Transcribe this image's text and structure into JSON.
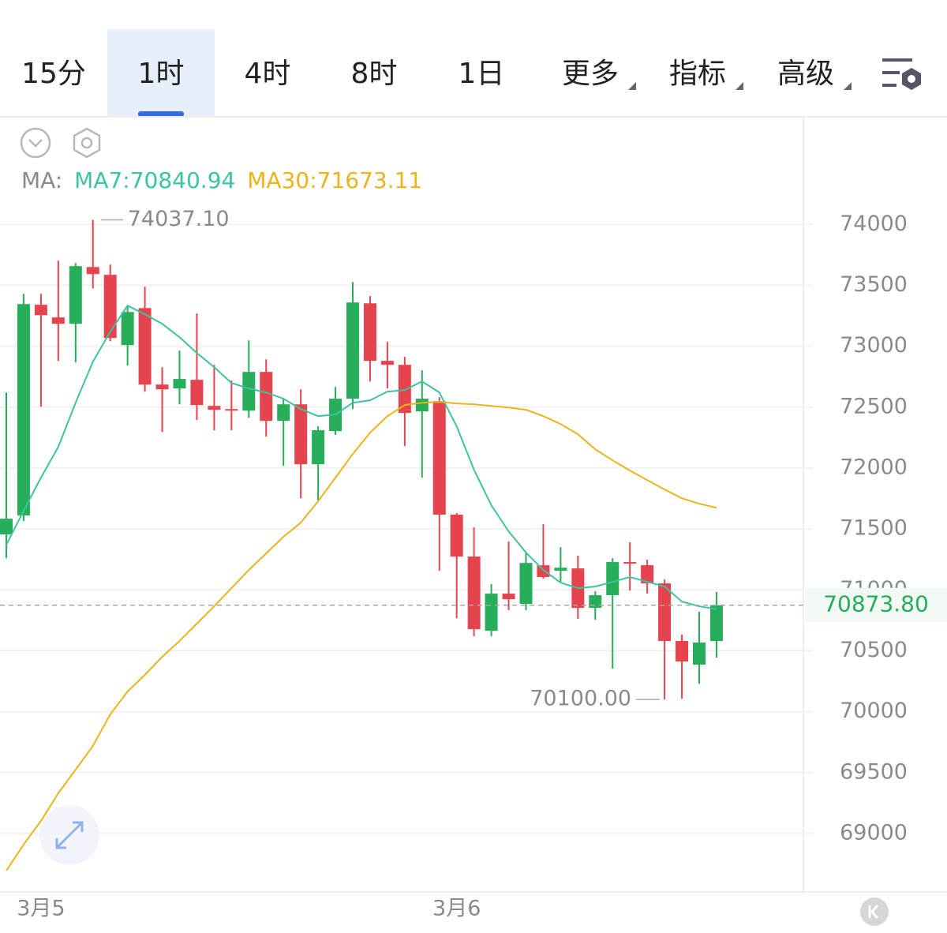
{
  "tabs": [
    "15分",
    "1时",
    "4时",
    "8时",
    "1日",
    "更多",
    "指标",
    "高级"
  ],
  "selected_tab": 1,
  "chart_data": {
    "type": "candlestick",
    "legend_prefix": "MA:",
    "categories": [
      null,
      null,
      "3月5",
      null,
      null,
      null,
      null,
      null,
      null,
      null,
      null,
      null,
      null,
      null,
      null,
      null,
      null,
      null,
      null,
      null,
      null,
      null,
      null,
      null,
      null,
      null,
      "3月6",
      null,
      null,
      null,
      null,
      null,
      null,
      null,
      null,
      null,
      null,
      null,
      null,
      null,
      null,
      null
    ],
    "open": [
      71455,
      71610,
      73340,
      73236,
      73184,
      73650,
      73586,
      73009,
      73313,
      72685,
      72653,
      72724,
      72510,
      72484,
      72471,
      72789,
      72387,
      72523,
      72031,
      72303,
      72569,
      73352,
      72880,
      72847,
      72465,
      72549,
      71617,
      71273,
      70664,
      70969,
      70885,
      71202,
      71157,
      71176,
      70852,
      70956,
      71228,
      71202,
      71053,
      70580,
      70386,
      70580
    ],
    "high": [
      72620,
      73430,
      73430,
      73702,
      73683,
      74037.1,
      73670,
      73326,
      73488,
      72828,
      72964,
      73268,
      72847,
      72718,
      73048,
      72892,
      72569,
      72646,
      72342,
      72666,
      73527,
      73411,
      73035,
      72912,
      72802,
      72582,
      71630,
      71513,
      71047,
      71396,
      71312,
      71539,
      71351,
      71280,
      70988,
      71260,
      71390,
      71247,
      71085,
      70632,
      70820,
      70982
    ],
    "low": [
      71260,
      71565,
      72504,
      72880,
      72867,
      73475,
      73041,
      72841,
      72627,
      72297,
      72523,
      72394,
      72310,
      72310,
      72413,
      72258,
      72018,
      71752,
      71733,
      72271,
      72484,
      72711,
      72653,
      72180,
      71921,
      71157,
      70768,
      70619,
      70619,
      70833,
      70833,
      71092,
      71066,
      70762,
      70755,
      70353,
      70995,
      70969,
      70100,
      70107,
      70230,
      70444
    ],
    "close": [
      71584,
      73346,
      73255,
      73184,
      73657,
      73592,
      73067,
      73281,
      72685,
      72646,
      72731,
      72517,
      72478,
      72471,
      72789,
      72387,
      72523,
      72031,
      72310,
      72569,
      73359,
      72880,
      72847,
      72452,
      72569,
      71617,
      71273,
      70677,
      70969,
      70923,
      71221,
      71105,
      71182,
      70852,
      70956,
      71228,
      71215,
      71053,
      70580,
      70412,
      70567,
      70873.8
    ],
    "up_color": "#27ae5a",
    "down_color": "#e5444f",
    "series": [
      {
        "name": "MA7:70840.94",
        "color": "#3cc4a2",
        "values": [
          71370,
          71649,
          71921,
          72173,
          72536,
          72873,
          73119,
          73333,
          73262,
          73184,
          73074,
          72944,
          72828,
          72698,
          72653,
          72620,
          72569,
          72484,
          72426,
          72439,
          72536,
          72556,
          72627,
          72640,
          72711,
          72620,
          72342,
          71986,
          71694,
          71480,
          71306,
          71163,
          71059,
          71014,
          71027,
          71066,
          71105,
          71066,
          71027,
          70904,
          70865,
          70840.94
        ]
      },
      {
        "name": "MA30:71673.11",
        "color": "#e9b41c",
        "values": [
          68695,
          68909,
          69103,
          69330,
          69524,
          69719,
          69978,
          70166,
          70302,
          70451,
          70580,
          70723,
          70865,
          71014,
          71163,
          71299,
          71435,
          71552,
          71727,
          71921,
          72115,
          72290,
          72426,
          72517,
          72536,
          72543,
          72530,
          72523,
          72510,
          72497,
          72478,
          72426,
          72361,
          72277,
          72154,
          72063,
          71979,
          71901,
          71824,
          71752,
          71707,
          71673.11
        ]
      }
    ],
    "ylim": [
      68520,
      74870
    ],
    "yticks": [
      69000,
      69500,
      70000,
      70500,
      71000,
      71500,
      72000,
      72500,
      73000,
      73500,
      74000
    ],
    "grid": true,
    "last_price": {
      "value": 70873.8,
      "label": "70873.80"
    },
    "annotations": [
      {
        "value": 74037.1,
        "label": "74037.10"
      },
      {
        "value": 70100,
        "label": "70100.00"
      }
    ]
  }
}
